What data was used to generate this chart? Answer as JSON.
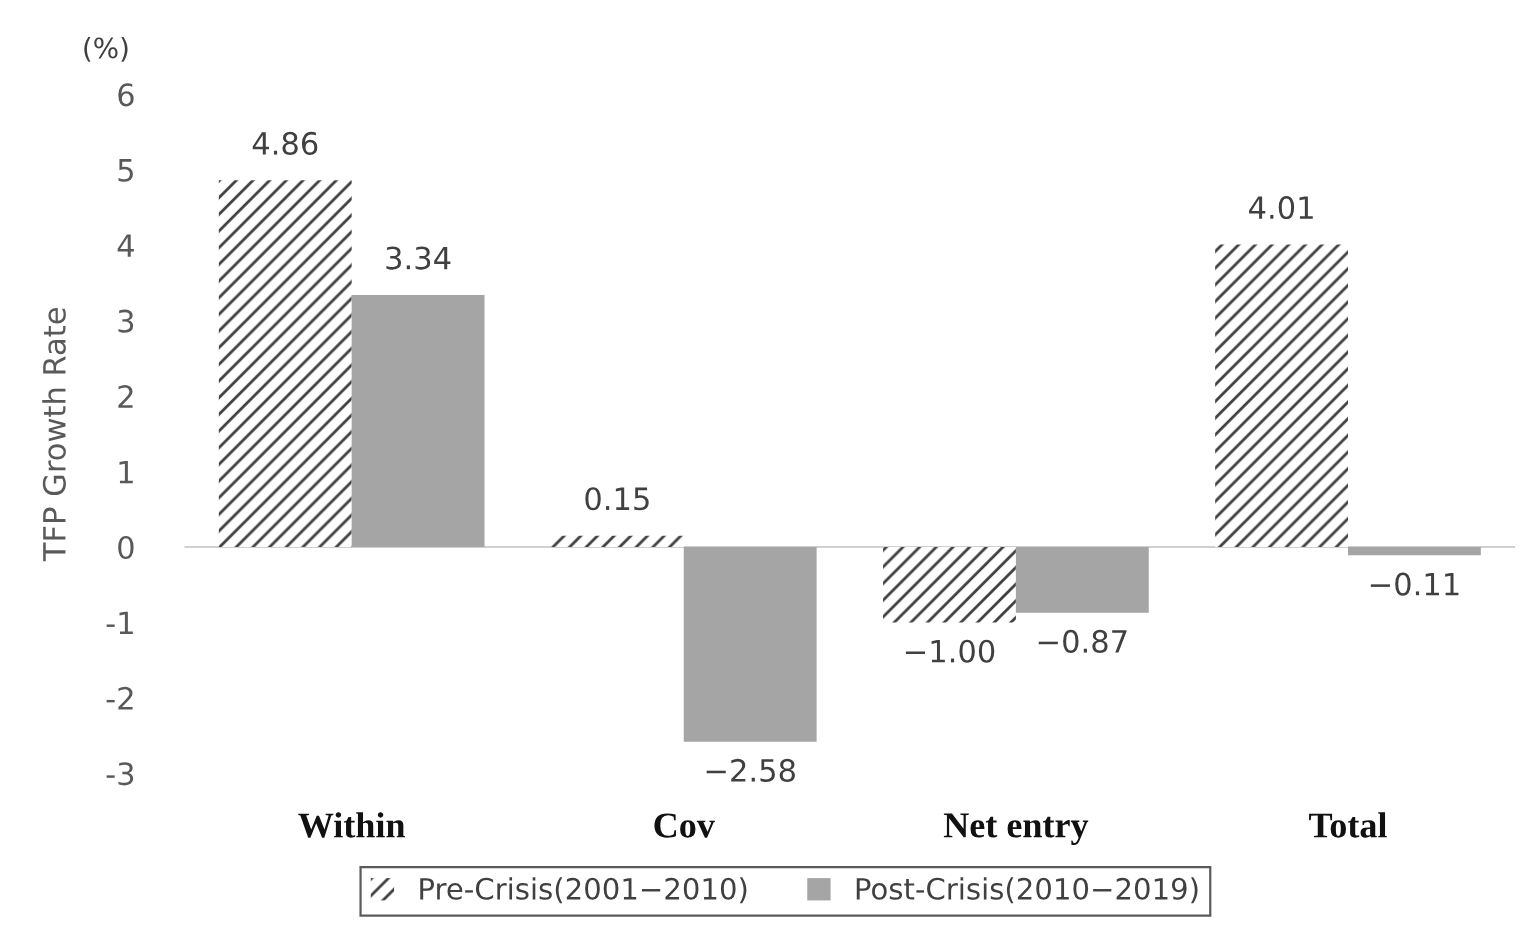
{
  "chart_data": {
    "type": "bar",
    "categories": [
      "Within",
      "Cov",
      "Net entry",
      "Total"
    ],
    "series": [
      {
        "name": "Pre-Crisis(2001−2010)",
        "color": "#404040",
        "values": [
          4.86,
          0.15,
          -1.0,
          4.01
        ],
        "value_labels": [
          "4.86",
          "0.15",
          "−1.00",
          "4.01"
        ]
      },
      {
        "name": "Post-Crisis(2010−2019)",
        "color": "#a5a5a5",
        "values": [
          3.34,
          -2.58,
          -0.87,
          -0.11
        ],
        "value_labels": [
          "3.34",
          "−2.58",
          "−0.87",
          "−0.11"
        ]
      }
    ],
    "ylabel": "TFP Growth Rate",
    "annotations": [
      "(%)"
    ],
    "ylim": [
      -3,
      6
    ],
    "yticks": [
      -3,
      -2,
      -1,
      0,
      1,
      2,
      3,
      4,
      5,
      6
    ],
    "legend": "bottom"
  }
}
